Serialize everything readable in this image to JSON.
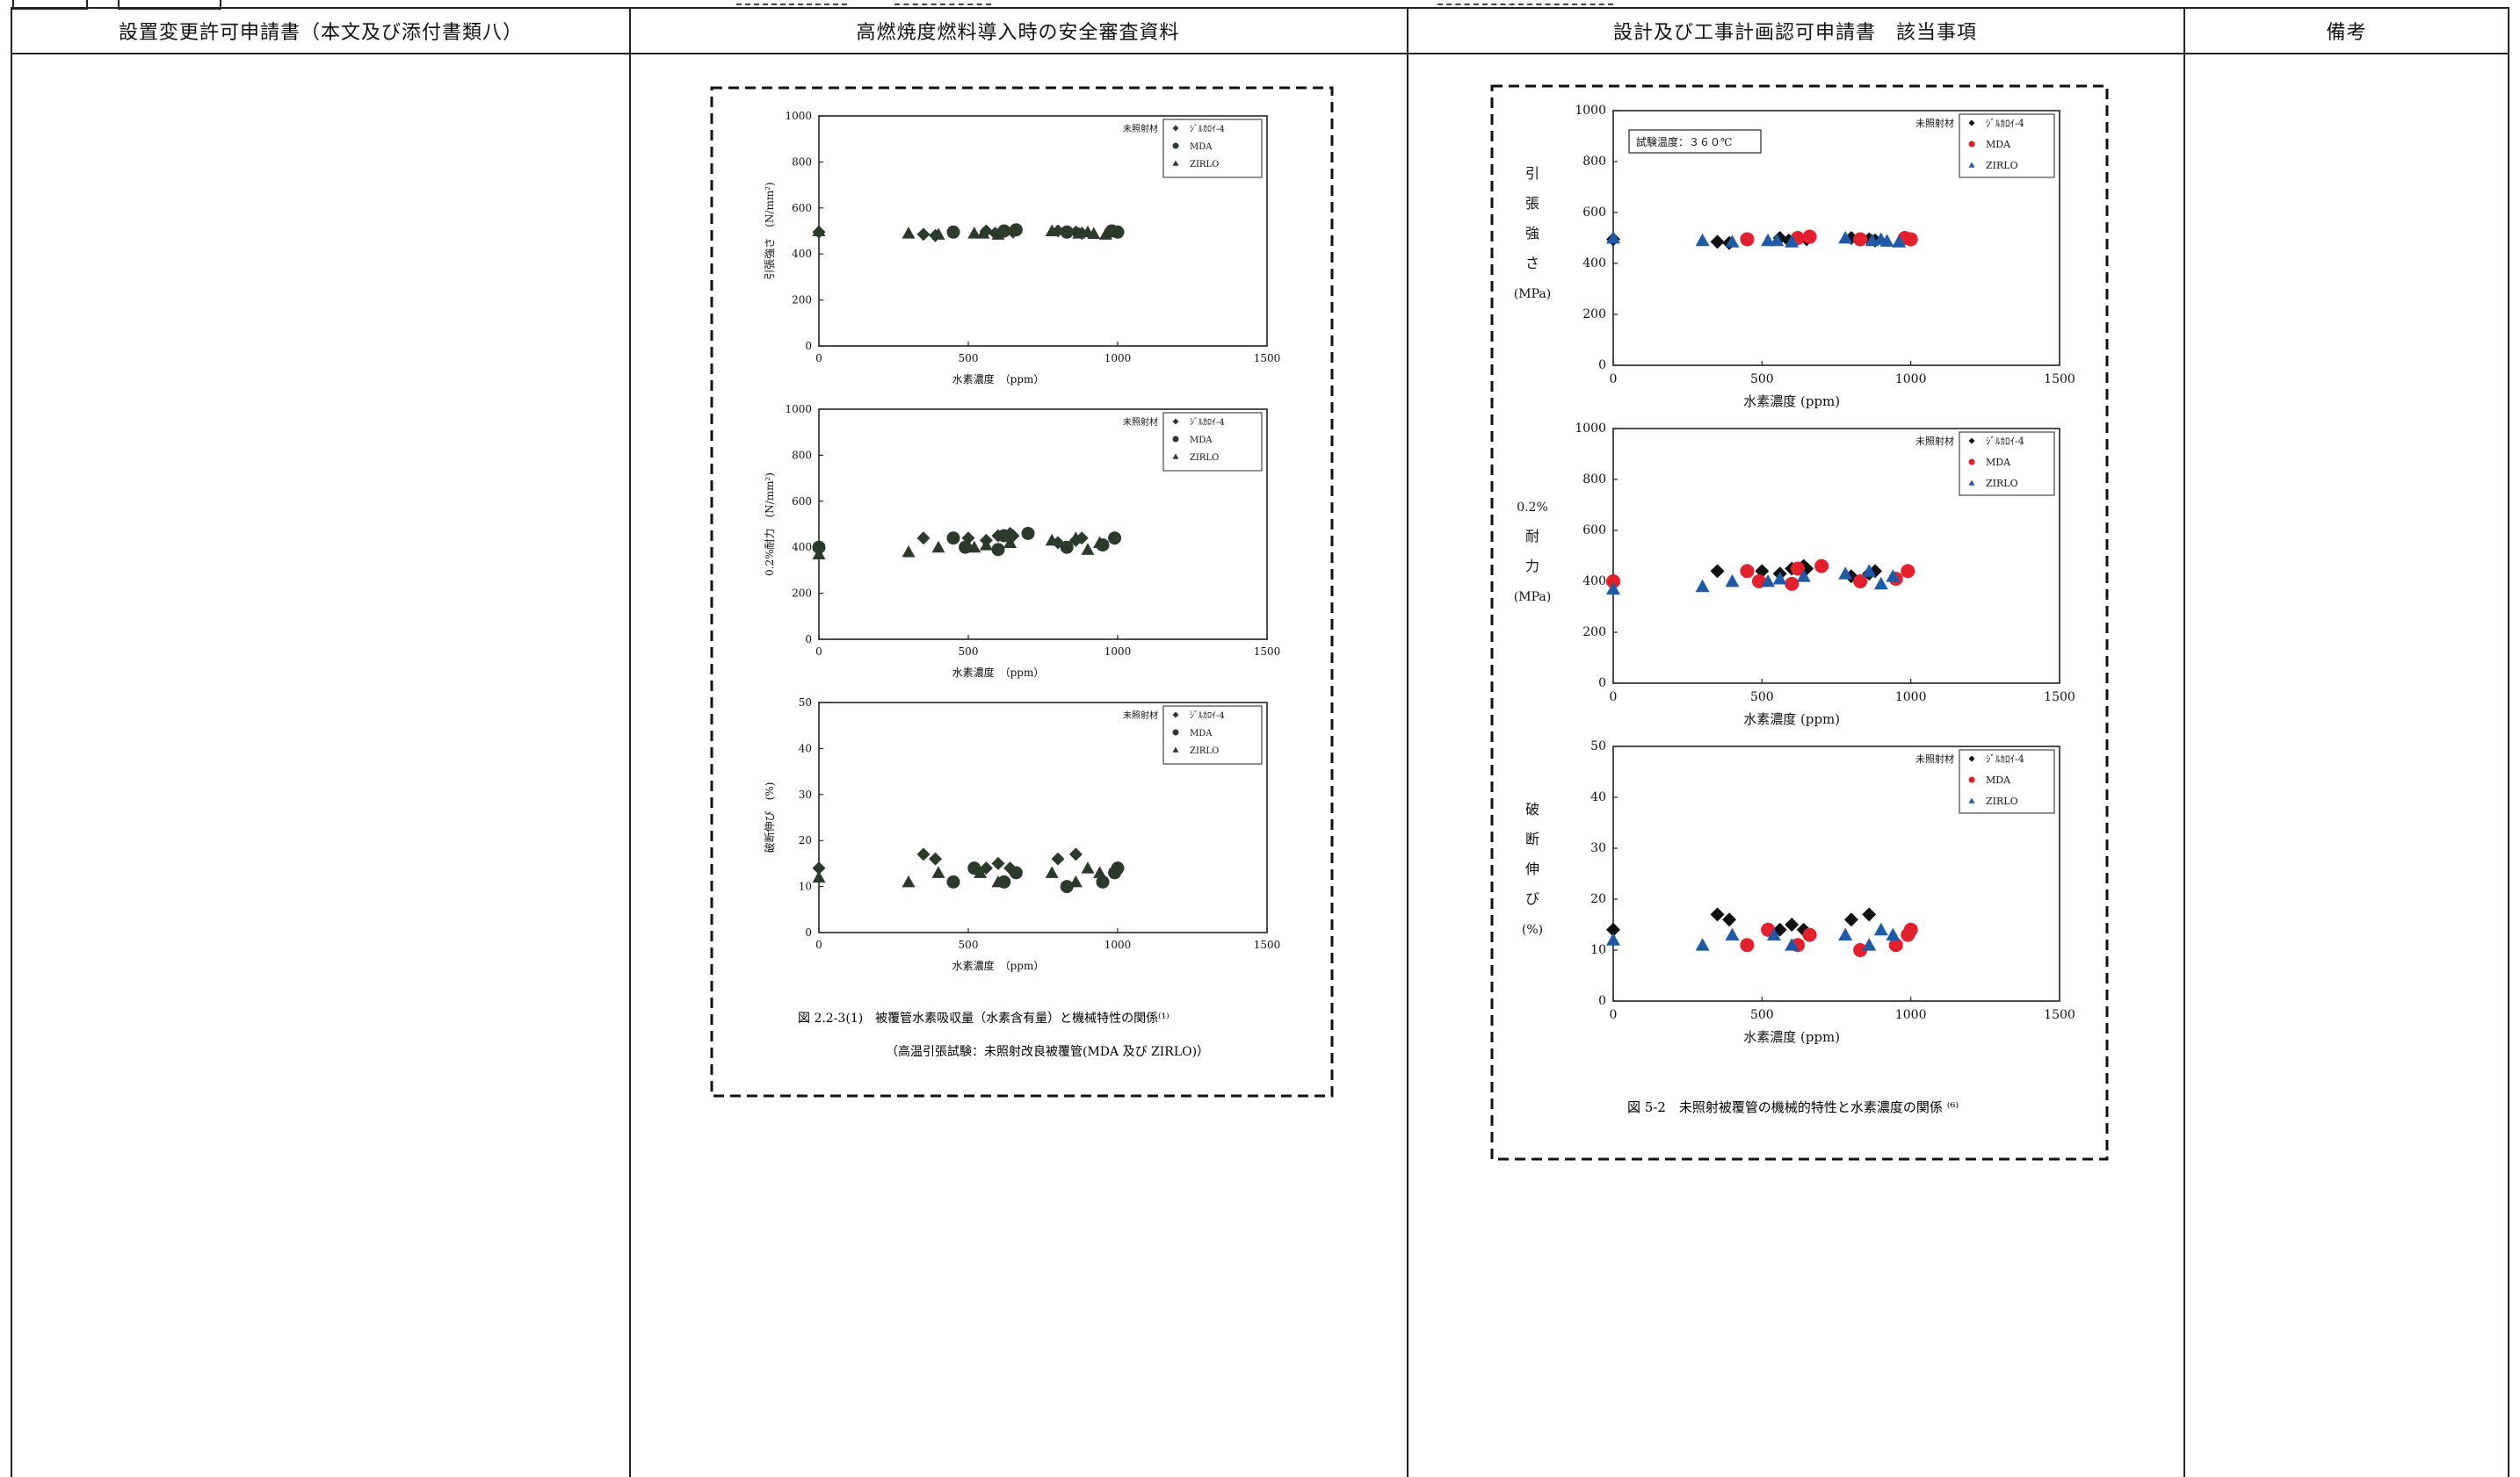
{
  "headers": {
    "col1": "設置変更許可申請書（本文及び添付書類八）",
    "col2": "高燃焼度燃料導入時の安全審査資料",
    "col3": "設計及び工事計画認可申請書　該当事項",
    "col4": "備考"
  },
  "legend": {
    "title": "未照射材",
    "items": [
      "ｼﾞﾙｶﾛｲ-4",
      "MDA",
      "ZIRLO"
    ]
  },
  "colors": {
    "zircaloy": "#111111",
    "mda": "#e3202c",
    "zirlo": "#1f5aa8",
    "gray_marker": "#2b3a2b"
  },
  "figure_left": {
    "caption1": "図 2.2-3(1)　被覆管水素吸収量（水素含有量）と機械特性の関係⁽¹⁾",
    "caption2": "（高温引張試験：未照射改良被覆管(MDA 及び ZIRLO)）",
    "xlabel": "水素濃度　（ppm）",
    "x_ticks": [
      "0",
      "500",
      "1000",
      "1500"
    ],
    "panels": [
      {
        "ylabel": "引張強さ　(N/mm²)",
        "y_ticks": [
          "0",
          "200",
          "400",
          "600",
          "800",
          "1000"
        ]
      },
      {
        "ylabel": "0.2%耐力　(N/mm²)",
        "y_ticks": [
          "0",
          "200",
          "400",
          "600",
          "800",
          "1000"
        ]
      },
      {
        "ylabel": "破断伸び　(%)",
        "y_ticks": [
          "0",
          "10",
          "20",
          "30",
          "40",
          "50"
        ]
      }
    ]
  },
  "figure_right": {
    "caption": "図 5-2　未照射被覆管の機械的特性と水素濃度の関係 ⁽⁶⁾",
    "test_temp": "試験温度：３６０℃",
    "xlabel": "水素濃度 (ppm)",
    "x_ticks": [
      "0",
      "500",
      "1000",
      "1500"
    ],
    "panels": [
      {
        "ylabel_lines": [
          "引",
          "張",
          "強",
          "さ",
          "(MPa)"
        ],
        "y_ticks": [
          "0",
          "200",
          "400",
          "600",
          "800",
          "1000"
        ]
      },
      {
        "ylabel_lines": [
          "0.2%",
          "耐",
          "力",
          "(MPa)"
        ],
        "y_ticks": [
          "0",
          "200",
          "400",
          "600",
          "800",
          "1000"
        ]
      },
      {
        "ylabel_lines": [
          "破",
          "断",
          "伸",
          "び",
          "(%)"
        ],
        "y_ticks": [
          "0",
          "10",
          "20",
          "30",
          "40",
          "50"
        ]
      }
    ]
  },
  "chart_data": [
    {
      "type": "scatter",
      "title": "",
      "xlabel": "水素濃度 (ppm)",
      "ylabel": "引張強さ",
      "xlim": [
        0,
        1500
      ],
      "ylim": [
        0,
        1000
      ],
      "series": [
        {
          "name": "ｼﾞﾙｶﾛｲ-4",
          "x": [
            0,
            350,
            390,
            560,
            590,
            650,
            800,
            860,
            880
          ],
          "y": [
            495,
            485,
            480,
            500,
            490,
            495,
            500,
            495,
            490
          ]
        },
        {
          "name": "MDA",
          "x": [
            450,
            620,
            660,
            830,
            980,
            1000
          ],
          "y": [
            495,
            500,
            505,
            495,
            500,
            495
          ]
        },
        {
          "name": "ZIRLO",
          "x": [
            0,
            300,
            400,
            520,
            550,
            600,
            780,
            870,
            900,
            920,
            960
          ],
          "y": [
            500,
            490,
            485,
            490,
            490,
            485,
            500,
            490,
            495,
            488,
            485
          ]
        }
      ]
    },
    {
      "type": "scatter",
      "title": "",
      "xlabel": "水素濃度 (ppm)",
      "ylabel": "0.2%耐力",
      "xlim": [
        0,
        1500
      ],
      "ylim": [
        0,
        1000
      ],
      "series": [
        {
          "name": "ｼﾞﾙｶﾛｲ-4",
          "x": [
            0,
            350,
            500,
            560,
            600,
            640,
            650,
            800,
            860,
            880
          ],
          "y": [
            390,
            440,
            440,
            430,
            450,
            460,
            450,
            420,
            430,
            440
          ]
        },
        {
          "name": "MDA",
          "x": [
            0,
            450,
            490,
            600,
            620,
            700,
            830,
            950,
            990
          ],
          "y": [
            400,
            440,
            400,
            390,
            450,
            460,
            400,
            410,
            440
          ]
        },
        {
          "name": "ZIRLO",
          "x": [
            0,
            300,
            400,
            520,
            560,
            640,
            780,
            860,
            900,
            940
          ],
          "y": [
            370,
            380,
            400,
            400,
            410,
            420,
            430,
            440,
            390,
            420
          ]
        }
      ]
    },
    {
      "type": "scatter",
      "title": "",
      "xlabel": "水素濃度 (ppm)",
      "ylabel": "破断伸び",
      "xlim": [
        0,
        1500
      ],
      "ylim": [
        0,
        50
      ],
      "series": [
        {
          "name": "ｼﾞﾙｶﾛｲ-4",
          "x": [
            0,
            350,
            390,
            560,
            600,
            640,
            800,
            860
          ],
          "y": [
            14,
            17,
            16,
            14,
            15,
            14,
            16,
            17
          ]
        },
        {
          "name": "MDA",
          "x": [
            450,
            520,
            620,
            660,
            830,
            950,
            990,
            1000
          ],
          "y": [
            11,
            14,
            11,
            13,
            10,
            11,
            13,
            14
          ]
        },
        {
          "name": "ZIRLO",
          "x": [
            0,
            300,
            400,
            540,
            600,
            780,
            860,
            900,
            940
          ],
          "y": [
            12,
            11,
            13,
            13,
            11,
            13,
            11,
            14,
            13
          ]
        }
      ]
    }
  ]
}
